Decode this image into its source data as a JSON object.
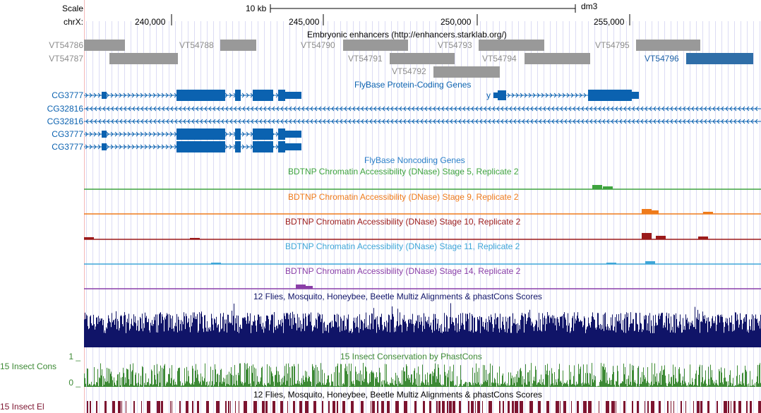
{
  "ruler": {
    "scale_label": "Scale",
    "chrom_label": "chrX:",
    "scale_bar_text": "10 kb",
    "assembly": "dm3",
    "ticks": [
      "240,000",
      "245,000",
      "250,000",
      "255,000"
    ]
  },
  "enhancers": {
    "title": "Embryonic enhancers (http://enhancers.starklab.org/)",
    "left_labels": [
      "VT54786",
      "VT54787"
    ],
    "items": [
      {
        "name": "VT54786",
        "start": 0.0,
        "end": 58.0,
        "row": 0,
        "color": "#999999"
      },
      {
        "name": "VT54787",
        "start": 36.0,
        "end": 133.0,
        "row": 1,
        "color": "#999999"
      },
      {
        "name": "VT54788",
        "start": 193.0,
        "end": 244.0,
        "row": 0,
        "color": "#999999"
      },
      {
        "name": "VT54790",
        "start": 367.0,
        "end": 459.0,
        "row": 0,
        "color": "#999999"
      },
      {
        "name": "VT54791",
        "start": 433.0,
        "end": 525.0,
        "row": 1,
        "color": "#999999"
      },
      {
        "name": "VT54792",
        "start": 495.0,
        "end": 589.0,
        "row": 2,
        "color": "#999999"
      },
      {
        "name": "VT54793",
        "start": 559.0,
        "end": 652.0,
        "row": 0,
        "color": "#999999"
      },
      {
        "name": "VT54794",
        "start": 624.0,
        "end": 717.0,
        "row": 1,
        "color": "#999999"
      },
      {
        "name": "VT54795",
        "start": 782.0,
        "end": 873.0,
        "row": 0,
        "color": "#999999"
      },
      {
        "name": "VT54796",
        "start": 853.0,
        "end": 948.0,
        "row": 1,
        "color": "#2f6ea8"
      }
    ]
  },
  "protein_genes": {
    "title": "FlyBase Protein-Coding Genes",
    "rows": [
      "CG3777",
      "CG32816",
      "CG32816",
      "CG3777",
      "CG3777"
    ],
    "y_gene_label": "y"
  },
  "noncoding": {
    "title": "FlyBase Noncoding Genes"
  },
  "dnase_tracks": [
    {
      "title": "BDTNP Chromatin Accessibility (DNase) Stage 5, Replicate 2",
      "color": "#3ea33e"
    },
    {
      "title": "BDTNP Chromatin Accessibility (DNase) Stage 9, Replicate 2",
      "color": "#ef7b1b"
    },
    {
      "title": "BDTNP Chromatin Accessibility (DNase) Stage 10, Replicate 2",
      "color": "#9b1a1a"
    },
    {
      "title": "BDTNP Chromatin Accessibility (DNase) Stage 11, Replicate 2",
      "color": "#3ea6d8"
    },
    {
      "title": "BDTNP Chromatin Accessibility (DNase) Stage 14, Replicate 2",
      "color": "#8a3fa8"
    }
  ],
  "multiz": {
    "title": "12 Flies, Mosquito, Honeybee, Beetle Multiz Alignments & phastCons Scores",
    "color": "#101468"
  },
  "cons": {
    "title": "15 Insect Conservation by PhastCons",
    "left_label": "15 Insect Cons",
    "max_label": "1 _",
    "min_label": "0 _",
    "color": "#3d8a35"
  },
  "elements": {
    "title": "12 Flies, Mosquito, Honeybee, Beetle Multiz Alignments & phastCons Scores",
    "left_label": "15 Insect El",
    "color": "#7d1530"
  }
}
